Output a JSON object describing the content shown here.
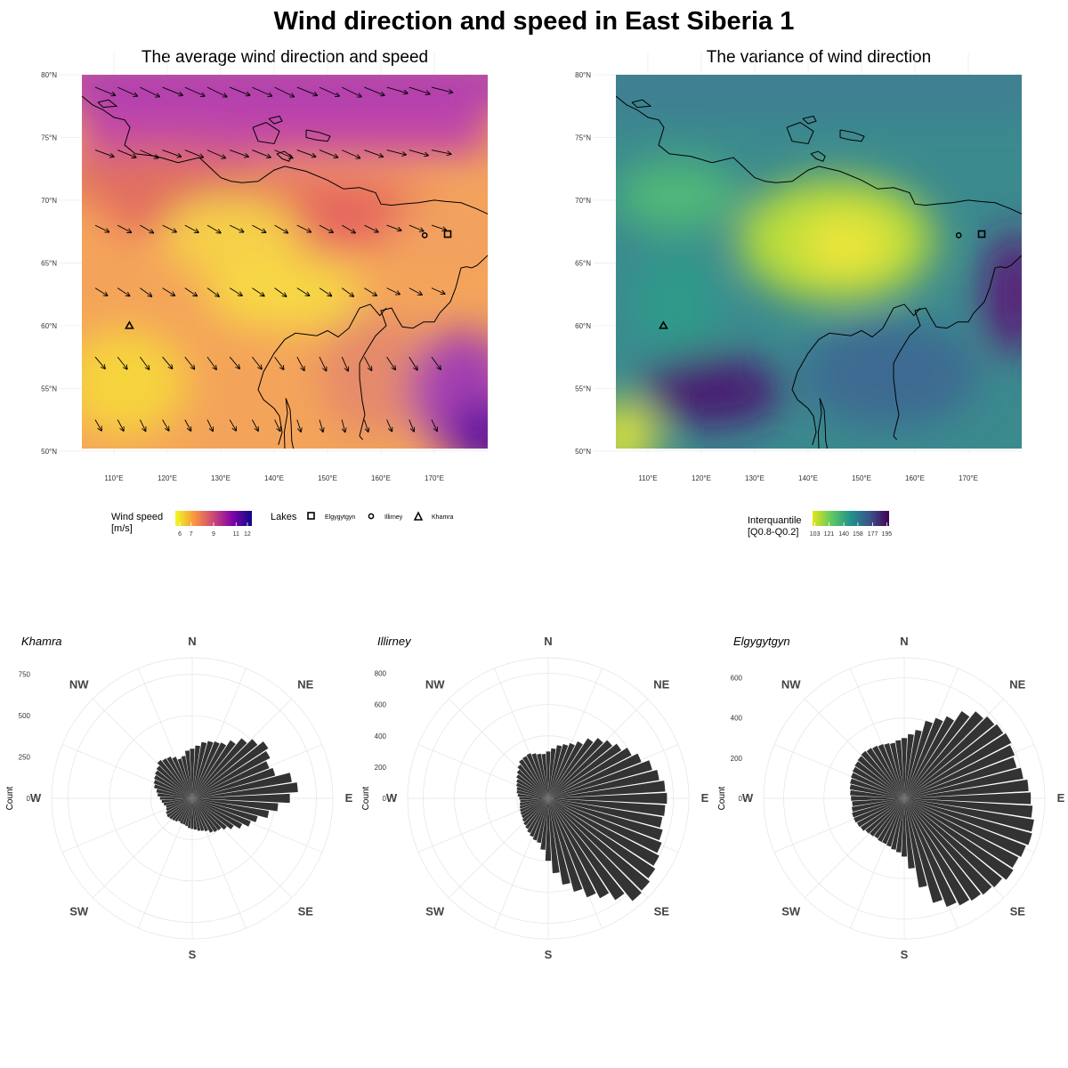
{
  "title": "Wind direction and speed in East Siberia 1",
  "map_left": {
    "title": "The average wind direction and speed",
    "lat_ticks": [
      "80°N",
      "75°N",
      "70°N",
      "65°N",
      "60°N",
      "55°N",
      "50°N"
    ],
    "lon_ticks": [
      "110°E",
      "120°E",
      "130°E",
      "140°E",
      "150°E",
      "160°E",
      "170°E"
    ],
    "colorscale": [
      "#f0f921",
      "#f89540",
      "#cc4778",
      "#7e03a8",
      "#0d0887"
    ],
    "legend_speed": {
      "title_line1": "Wind speed",
      "title_line2": "[m/s]",
      "ticks": [
        "6",
        "7",
        "9",
        "11",
        "12"
      ],
      "tick_values": [
        6,
        7,
        9,
        11,
        12
      ],
      "range": [
        5.6,
        12.4
      ]
    },
    "legend_lakes": {
      "title": "Lakes",
      "items": [
        "Elgygytgyn",
        "Illirney",
        "Khamra"
      ]
    },
    "lakes": [
      {
        "name": "Khamra",
        "lon": 112.9,
        "lat": 60.0,
        "shape": "triangle"
      },
      {
        "name": "Illirney",
        "lon": 168.2,
        "lat": 67.2,
        "shape": "circle"
      },
      {
        "name": "Elgygytgyn",
        "lon": 172.5,
        "lat": 67.3,
        "shape": "square"
      }
    ]
  },
  "map_right": {
    "title": "The variance of wind direction",
    "lat_ticks": [
      "80°N",
      "75°N",
      "70°N",
      "65°N",
      "60°N",
      "55°N",
      "50°N"
    ],
    "lon_ticks": [
      "110°E",
      "120°E",
      "130°E",
      "140°E",
      "150°E",
      "160°E",
      "170°E"
    ],
    "colorscale": [
      "#e5e419",
      "#5ec962",
      "#21918c",
      "#3b528b",
      "#440154"
    ],
    "legend": {
      "title_line1": "Interquantile",
      "title_line2": "[Q0.8-Q0.2]",
      "ticks": [
        "103",
        "121",
        "140",
        "158",
        "177",
        "195"
      ],
      "tick_values": [
        103,
        121,
        140,
        158,
        177,
        195
      ],
      "range": [
        100,
        198
      ]
    }
  },
  "roses": {
    "directions": [
      "N",
      "NE",
      "E",
      "SE",
      "S",
      "SW",
      "W",
      "NW"
    ],
    "ylabel": "Count",
    "panels": [
      {
        "title": "Khamra",
        "ticks": [
          0,
          250,
          500,
          750
        ],
        "max": 850,
        "values": [
          300,
          320,
          345,
          360,
          370,
          380,
          420,
          470,
          510,
          550,
          530,
          500,
          520,
          610,
          640,
          590,
          520,
          470,
          410,
          380,
          340,
          300,
          270,
          250,
          245,
          235,
          215,
          205,
          200,
          190,
          185,
          180,
          170,
          165,
          165,
          160,
          170,
          175,
          180,
          185,
          180,
          170,
          165,
          175,
          185,
          195,
          210,
          220,
          240,
          250,
          260,
          270,
          280,
          300,
          290,
          285,
          270,
          250,
          260,
          290
        ]
      },
      {
        "title": "Illirney",
        "ticks": [
          0,
          200,
          400,
          600,
          800
        ],
        "max": 900,
        "values": [
          300,
          320,
          345,
          360,
          380,
          410,
          460,
          500,
          530,
          560,
          600,
          640,
          690,
          720,
          750,
          760,
          750,
          740,
          760,
          780,
          800,
          820,
          840,
          850,
          780,
          720,
          680,
          620,
          560,
          480,
          400,
          330,
          290,
          280,
          265,
          250,
          235,
          225,
          215,
          205,
          200,
          195,
          190,
          185,
          180,
          185,
          195,
          205,
          210,
          220,
          230,
          245,
          260,
          280,
          300,
          305,
          310,
          300,
          290,
          285
        ]
      },
      {
        "title": "Elgygytgyn",
        "ticks": [
          0,
          200,
          400,
          600
        ],
        "max": 700,
        "values": [
          300,
          320,
          345,
          400,
          430,
          460,
          520,
          560,
          580,
          590,
          600,
          590,
          580,
          600,
          620,
          630,
          640,
          655,
          660,
          650,
          640,
          650,
          630,
          620,
          610,
          600,
          580,
          540,
          450,
          350,
          290,
          270,
          260,
          250,
          245,
          245,
          240,
          245,
          250,
          260,
          265,
          270,
          270,
          265,
          260,
          265,
          270,
          275,
          280,
          285,
          290,
          295,
          300,
          305,
          300,
          295,
          290,
          285,
          280,
          290
        ]
      }
    ]
  }
}
